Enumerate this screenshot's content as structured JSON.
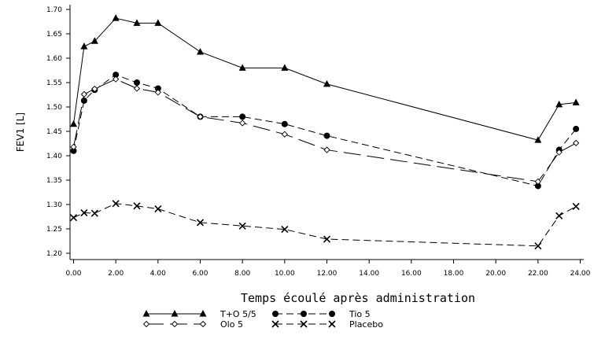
{
  "chart_data": {
    "type": "line",
    "xlabel": "Temps écoulé après administration",
    "ylabel": "FEV1 [L]",
    "xlim": [
      0,
      24
    ],
    "ylim": [
      1.2,
      1.7
    ],
    "x_ticks": [
      0,
      2,
      4,
      6,
      8,
      10,
      12,
      14,
      16,
      18,
      20,
      22,
      24
    ],
    "x_tick_labels": [
      "0.00",
      "2.00",
      "4.00",
      "6.00",
      "8.00",
      "10.00",
      "12.00",
      "14.00",
      "16.00",
      "18.00",
      "20.00",
      "22.00",
      "24.00"
    ],
    "y_ticks": [
      1.2,
      1.25,
      1.3,
      1.35,
      1.4,
      1.45,
      1.5,
      1.55,
      1.6,
      1.65,
      1.7
    ],
    "y_tick_labels": [
      "1.20",
      "1.25",
      "1.30",
      "1.35",
      "1.40",
      "1.45",
      "1.50",
      "1.55",
      "1.60",
      "1.65",
      "1.70"
    ],
    "grid": false,
    "legend_position": "bottom",
    "series": [
      {
        "name": "Tio 5",
        "marker": "circle",
        "line": "dashed",
        "x": [
          0,
          0.5,
          1,
          2,
          3,
          4,
          6,
          8,
          10,
          12,
          22,
          23,
          23.8
        ],
        "y": [
          1.41,
          1.513,
          1.535,
          1.566,
          1.55,
          1.538,
          1.48,
          1.48,
          1.465,
          1.441,
          1.338,
          1.412,
          1.455
        ]
      },
      {
        "name": "T+O 5/5",
        "marker": "triangle",
        "line": "solid",
        "x": [
          0,
          0.5,
          1,
          2,
          3,
          4,
          6,
          8,
          10,
          12,
          22,
          23,
          23.8
        ],
        "y": [
          1.465,
          1.624,
          1.635,
          1.682,
          1.672,
          1.672,
          1.613,
          1.58,
          1.58,
          1.547,
          1.432,
          1.505,
          1.509
        ]
      },
      {
        "name": "Olo 5",
        "marker": "diamond",
        "line": "longdash",
        "x": [
          0,
          0.5,
          1,
          2,
          3,
          4,
          6,
          8,
          10,
          12,
          22,
          23,
          23.8
        ],
        "y": [
          1.418,
          1.526,
          1.537,
          1.557,
          1.538,
          1.53,
          1.48,
          1.467,
          1.444,
          1.412,
          1.347,
          1.407,
          1.426
        ]
      },
      {
        "name": "Placebo",
        "marker": "x",
        "line": "dashed",
        "x": [
          0,
          0.5,
          1,
          2,
          3,
          4,
          6,
          8,
          10,
          12,
          22,
          23,
          23.8
        ],
        "y": [
          1.273,
          1.283,
          1.282,
          1.302,
          1.297,
          1.291,
          1.263,
          1.256,
          1.249,
          1.229,
          1.215,
          1.277,
          1.296
        ]
      }
    ]
  }
}
